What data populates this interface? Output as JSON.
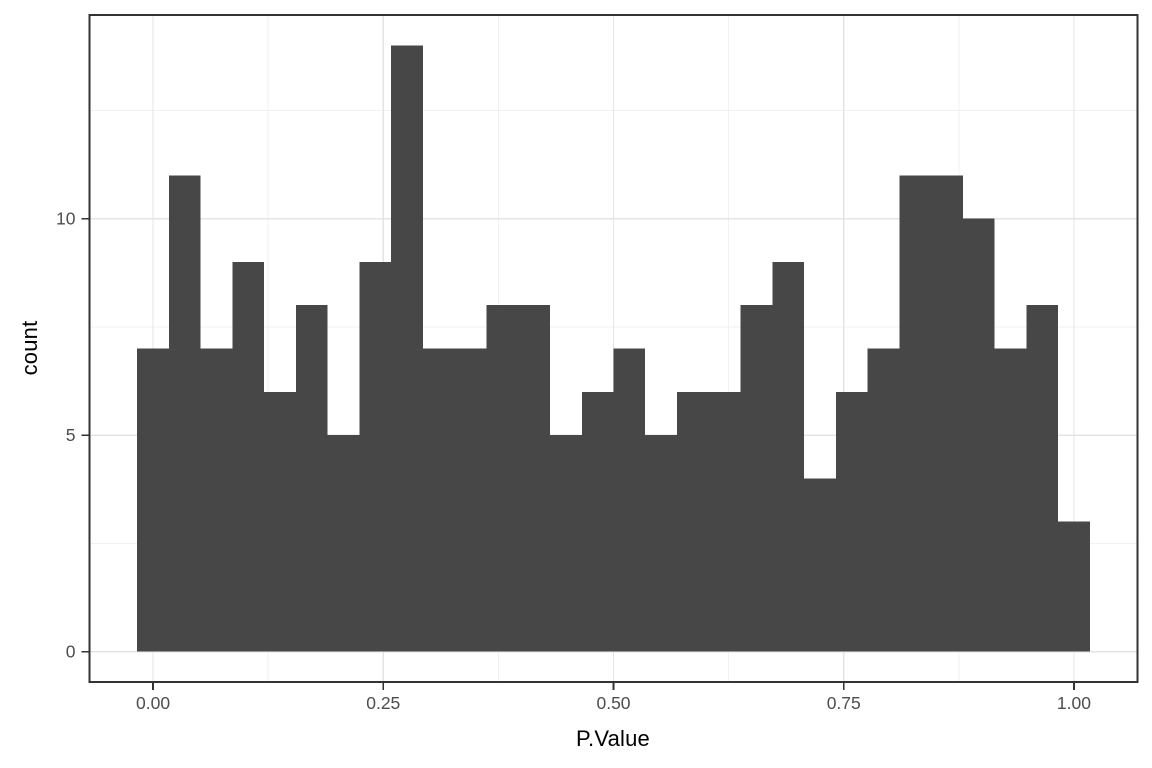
{
  "figure": {
    "background": "#ffffff"
  },
  "chart_data": {
    "type": "bar",
    "subtype": "histogram",
    "title": "",
    "xlabel": "P.Value",
    "ylabel": "count",
    "legend": "none",
    "grid": true,
    "bar_color": "#474747",
    "bin_width": 0.034483,
    "bin_centers": [
      0.0,
      0.0345,
      0.069,
      0.1034,
      0.1379,
      0.1724,
      0.2069,
      0.2414,
      0.2759,
      0.3103,
      0.3448,
      0.3793,
      0.4138,
      0.4483,
      0.4828,
      0.5172,
      0.5517,
      0.5862,
      0.6207,
      0.6552,
      0.6897,
      0.7241,
      0.7586,
      0.7931,
      0.8276,
      0.8621,
      0.8966,
      0.931,
      0.9655,
      1.0
    ],
    "counts": [
      7,
      11,
      7,
      9,
      6,
      8,
      5,
      9,
      14,
      7,
      7,
      8,
      8,
      5,
      6,
      7,
      5,
      6,
      6,
      8,
      9,
      4,
      6,
      7,
      11,
      11,
      10,
      7,
      8,
      3
    ],
    "x_ticks": {
      "values": [
        0.0,
        0.25,
        0.5,
        0.75,
        1.0
      ],
      "labels": [
        "0.00",
        "0.25",
        "0.50",
        "0.75",
        "1.00"
      ]
    },
    "y_ticks": {
      "values": [
        0,
        5,
        10
      ],
      "labels": [
        "0",
        "5",
        "10"
      ]
    },
    "x_minor": [
      0.125,
      0.375,
      0.625,
      0.875
    ],
    "y_minor": [
      2.5,
      7.5,
      12.5
    ],
    "xlim": [
      -0.069,
      1.069
    ],
    "ylim": [
      -0.7,
      14.7
    ],
    "theme": {
      "panel_background": "#ffffff",
      "panel_border": "#333333",
      "grid_major": "#e4e4e4",
      "grid_minor": "#f1f1f1",
      "tick_color": "#333333",
      "tick_label_color": "#4d4d4d",
      "axis_title_color": "#000000"
    }
  }
}
